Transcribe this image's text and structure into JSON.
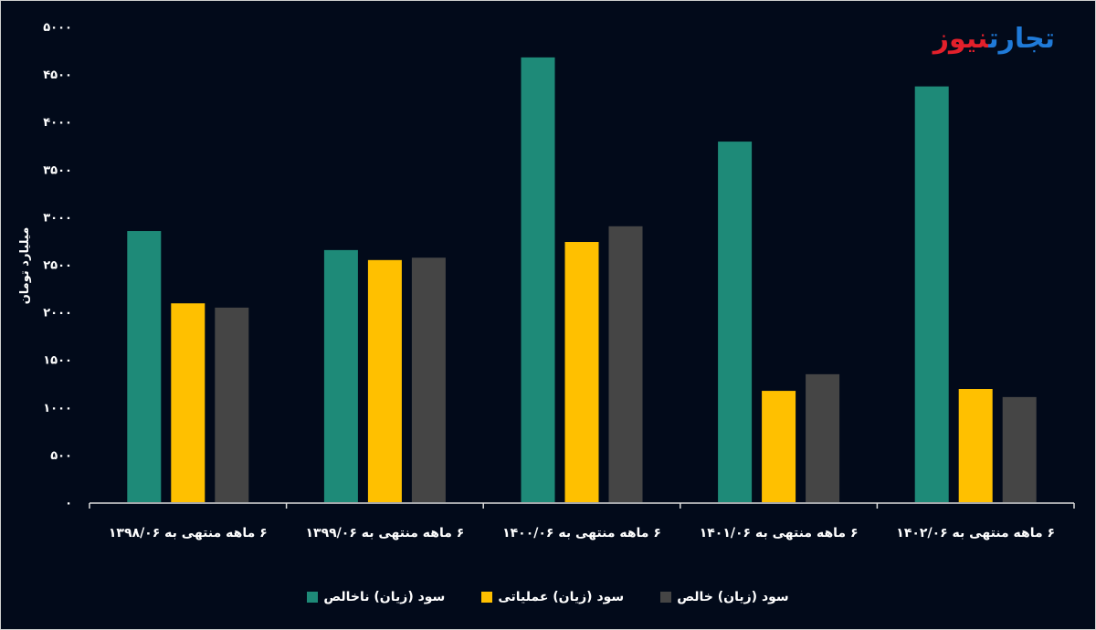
{
  "logo": {
    "part1": "تجارت",
    "part2": "نیوز"
  },
  "chart_data": {
    "type": "bar",
    "title": "",
    "ylabel": "میلیارد تومان",
    "xlabel": "",
    "ylim": [
      0,
      5000
    ],
    "yticks": [
      0,
      500,
      1000,
      1500,
      2000,
      2500,
      3000,
      3500,
      4000,
      4500,
      5000
    ],
    "ytick_labels": [
      "۰",
      "۵۰۰",
      "۱۰۰۰",
      "۱۵۰۰",
      "۲۰۰۰",
      "۲۵۰۰",
      "۳۰۰۰",
      "۳۵۰۰",
      "۴۰۰۰",
      "۴۵۰۰",
      "۵۰۰۰"
    ],
    "categories": [
      "۶ ماهه منتهی به ۱۳۹۸/۰۶",
      "۶ ماهه منتهی به ۱۳۹۹/۰۶",
      "۶ ماهه منتهی به ۱۴۰۰/۰۶",
      "۶ ماهه منتهی به ۱۴۰۱/۰۶",
      "۶ ماهه منتهی به ۱۴۰۲/۰۶"
    ],
    "series": [
      {
        "name": "سود (زیان) ناخالص",
        "color": "#1e8a78",
        "values": [
          2850,
          2650,
          4675,
          3790,
          4370
        ]
      },
      {
        "name": "سود (زیان) عملیاتی",
        "color": "#ffc000",
        "values": [
          2090,
          2545,
          2735,
          1170,
          1190
        ]
      },
      {
        "name": "سود (زیان) خالص",
        "color": "#454545",
        "values": [
          2045,
          2570,
          2900,
          1345,
          1105
        ]
      }
    ],
    "grid": false,
    "legend": "bottom"
  }
}
